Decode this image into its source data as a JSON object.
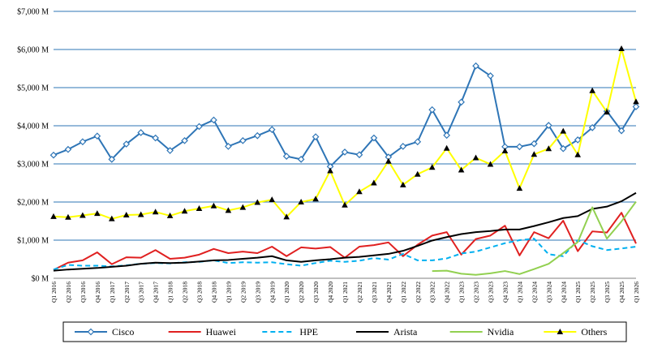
{
  "chart_data": {
    "type": "line",
    "title": "",
    "xlabel": "",
    "ylabel": "",
    "ylim": [
      0,
      7000
    ],
    "y_ticks": [
      0,
      1000,
      2000,
      3000,
      4000,
      5000,
      6000,
      7000
    ],
    "y_tick_labels": [
      "$0 M",
      "$1,000 M",
      "$2,000 M",
      "$3,000 M",
      "$4,000 M",
      "$5,000 M",
      "$6,000 M",
      "$7,000 M"
    ],
    "grid": "horizontal",
    "legend_position": "bottom",
    "categories": [
      "Q1 2016",
      "Q2 2016",
      "Q3 2016",
      "Q4 2016",
      "Q1 2017",
      "Q2 2017",
      "Q3 2017",
      "Q4 2017",
      "Q1 2018",
      "Q2 2018",
      "Q3 2018",
      "Q4 2018",
      "Q1 2019",
      "Q2 2019",
      "Q3 2019",
      "Q4 2019",
      "Q1 2020",
      "Q2 2020",
      "Q3 2020",
      "Q4 2020",
      "Q1 2021",
      "Q2 2021",
      "Q3 2021",
      "Q4 2021",
      "Q1 2022",
      "Q2 2022",
      "Q3 2022",
      "Q4 2022",
      "Q1 2023",
      "Q2 2023",
      "Q3 2023",
      "Q4 2023",
      "Q1 2024",
      "Q2 2024",
      "Q3 2024",
      "Q4 2024",
      "Q1 2025",
      "Q2 2025",
      "Q3 2025",
      "Q4 2025",
      "Q1 2026"
    ],
    "series": [
      {
        "name": "Cisco",
        "color": "#2e75b6",
        "style": "solid",
        "marker": "diamond",
        "values": [
          3230,
          3380,
          3580,
          3730,
          3120,
          3520,
          3820,
          3680,
          3350,
          3610,
          3980,
          4150,
          3460,
          3610,
          3740,
          3900,
          3200,
          3120,
          3710,
          2930,
          3310,
          3240,
          3680,
          3180,
          3460,
          3580,
          4420,
          3750,
          4620,
          5570,
          5310,
          3450,
          3450,
          3530,
          4010,
          3400,
          3630,
          3950,
          4380,
          3870,
          4500
        ]
      },
      {
        "name": "Huawei",
        "color": "#e02020",
        "style": "solid",
        "marker": "none",
        "values": [
          220,
          410,
          470,
          680,
          370,
          550,
          540,
          740,
          510,
          540,
          620,
          770,
          660,
          700,
          660,
          830,
          580,
          810,
          780,
          820,
          540,
          830,
          870,
          940,
          580,
          880,
          1120,
          1210,
          620,
          1030,
          1120,
          1380,
          600,
          1210,
          1050,
          1510,
          710,
          1230,
          1200,
          1720,
          910
        ]
      },
      {
        "name": "HPE",
        "color": "#00b0f0",
        "style": "dashed",
        "marker": "none",
        "values": [
          230,
          350,
          330,
          330,
          310,
          340,
          380,
          400,
          390,
          420,
          430,
          470,
          400,
          420,
          410,
          420,
          370,
          330,
          400,
          460,
          430,
          460,
          530,
          490,
          640,
          470,
          470,
          520,
          650,
          700,
          810,
          920,
          1000,
          1040,
          630,
          580,
          1000,
          840,
          740,
          780,
          830
        ]
      },
      {
        "name": "Arista",
        "color": "#000000",
        "style": "solid",
        "marker": "none",
        "values": [
          200,
          230,
          250,
          270,
          300,
          330,
          380,
          410,
          400,
          410,
          440,
          470,
          480,
          510,
          540,
          580,
          470,
          430,
          470,
          500,
          540,
          560,
          600,
          640,
          720,
          850,
          990,
          1080,
          1160,
          1210,
          1240,
          1280,
          1280,
          1370,
          1470,
          1580,
          1630,
          1820,
          1880,
          2020,
          2240
        ]
      },
      {
        "name": "Nvidia",
        "color": "#92d050",
        "style": "solid",
        "marker": "none",
        "values": [
          null,
          null,
          null,
          null,
          null,
          null,
          null,
          null,
          null,
          null,
          null,
          null,
          null,
          null,
          null,
          null,
          null,
          null,
          null,
          null,
          null,
          null,
          null,
          null,
          null,
          null,
          190,
          200,
          120,
          90,
          130,
          190,
          110,
          240,
          380,
          660,
          950,
          1860,
          1040,
          1490,
          2010
        ]
      },
      {
        "name": "Others",
        "color": "#ffff00",
        "style": "solid",
        "marker": "triangle",
        "values": [
          1620,
          1600,
          1650,
          1700,
          1560,
          1660,
          1670,
          1740,
          1640,
          1760,
          1830,
          1900,
          1780,
          1860,
          1990,
          2060,
          1610,
          2000,
          2080,
          2820,
          1920,
          2270,
          2500,
          3070,
          2450,
          2730,
          2910,
          3410,
          2840,
          3160,
          2990,
          3340,
          2360,
          3250,
          3400,
          3860,
          3240,
          4920,
          4360,
          6020,
          4630
        ]
      }
    ]
  }
}
